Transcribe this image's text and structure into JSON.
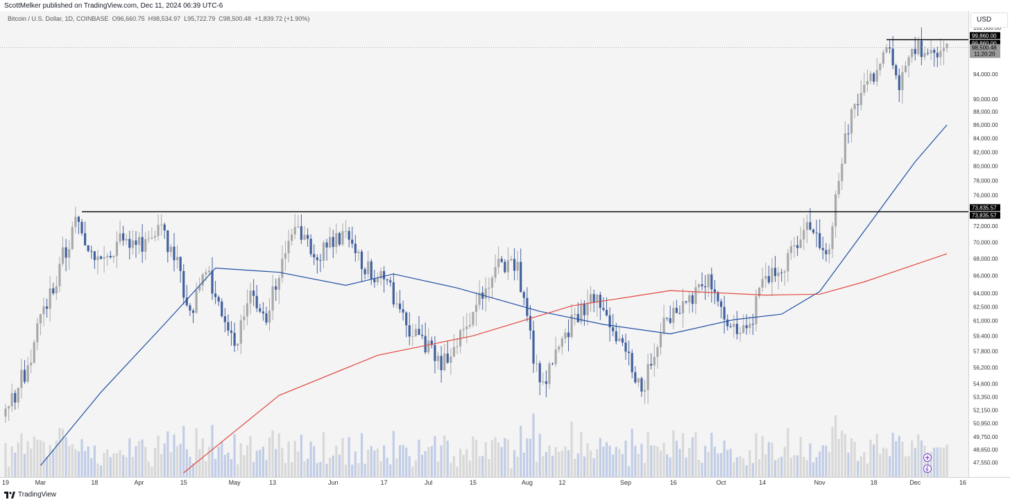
{
  "header": {
    "text": "ScottMelker published on TradingView.com, Dec 11, 2024 06:39 UTC-6"
  },
  "legend": {
    "symbol": "Bitcoin / U.S. Dollar, 1D, COINBASE",
    "open_label": "O",
    "open": "96,660.75",
    "high_label": "H",
    "high": "98,534.97",
    "low_label": "L",
    "low": "95,722.79",
    "close_label": "C",
    "close": "98,500.48",
    "change": "+1,839.72 (+1.90%)"
  },
  "currency": "USD",
  "footer": {
    "brand": "TradingView"
  },
  "colors": {
    "up": "#a8a8a8",
    "down": "#41609c",
    "ma_short": "#1f4ea3",
    "ma_long": "#e2453c",
    "background": "#f4f4f4"
  },
  "chart_data": {
    "type": "candlestick",
    "timeframe": "1D",
    "symbol": "BTCUSD",
    "exchange": "COINBASE",
    "price_axis": {
      "ticks": [
        "102,000.00",
        "94,000.00",
        "90,000.00",
        "88,000.00",
        "86,000.00",
        "84,000.00",
        "82,000.00",
        "80,000.00",
        "78,000.00",
        "76,000.00",
        "72,000.00",
        "70,000.00",
        "68,000.00",
        "66,000.00",
        "64,000.00",
        "62,500.00",
        "61,000.00",
        "59,400.00",
        "57,800.00",
        "56,200.00",
        "54,600.00",
        "53,350.00",
        "52,150.00",
        "50,950.00",
        "49,750.00",
        "48,650.00",
        "47,550.00"
      ],
      "scale": "log",
      "range": [
        46700,
        104500
      ]
    },
    "time_axis": {
      "ticks": [
        "19",
        "Mar",
        "18",
        "Apr",
        "15",
        "May",
        "13",
        "Jun",
        "17",
        "Jul",
        "15",
        "Aug",
        "12",
        "Sep",
        "16",
        "Oct",
        "14",
        "Nov",
        "18",
        "Dec",
        "16"
      ],
      "range": [
        "2024-02-19",
        "2024-12-16"
      ]
    },
    "horizontal_lines": [
      {
        "price": 99860.0,
        "label": "99,860.00",
        "label2": "99,860.00",
        "from": "2024-11-22"
      },
      {
        "price": 73835.57,
        "label": "73,835.57",
        "label2": "73,835.57",
        "from": "2024-03-14"
      }
    ],
    "last_price": {
      "price": 98500.48,
      "label": "98,500.48",
      "countdown": "11:20:20"
    },
    "ohlc_keypoints": [
      [
        "2024-02-19",
        51800
      ],
      [
        "2024-02-27",
        57000
      ],
      [
        "2024-03-01",
        62400
      ],
      [
        "2024-03-05",
        63800
      ],
      [
        "2024-03-08",
        68300
      ],
      [
        "2024-03-13",
        73000
      ],
      [
        "2024-03-16",
        69500
      ],
      [
        "2024-03-20",
        67800
      ],
      [
        "2024-03-25",
        70000
      ],
      [
        "2024-04-01",
        69700
      ],
      [
        "2024-04-08",
        71600
      ],
      [
        "2024-04-13",
        67200
      ],
      [
        "2024-04-17",
        61300
      ],
      [
        "2024-04-22",
        66800
      ],
      [
        "2024-05-01",
        58300
      ],
      [
        "2024-05-06",
        63400
      ],
      [
        "2024-05-10",
        60800
      ],
      [
        "2024-05-15",
        66200
      ],
      [
        "2024-05-20",
        71400
      ],
      [
        "2024-05-27",
        68500
      ],
      [
        "2024-06-05",
        71100
      ],
      [
        "2024-06-11",
        67300
      ],
      [
        "2024-06-18",
        65200
      ],
      [
        "2024-06-24",
        60300
      ],
      [
        "2024-07-05",
        56700
      ],
      [
        "2024-07-14",
        60800
      ],
      [
        "2024-07-22",
        67500
      ],
      [
        "2024-07-29",
        66800
      ],
      [
        "2024-08-05",
        54000
      ],
      [
        "2024-08-12",
        59300
      ],
      [
        "2024-08-23",
        64100
      ],
      [
        "2024-09-01",
        57400
      ],
      [
        "2024-09-06",
        53800
      ],
      [
        "2024-09-13",
        60500
      ],
      [
        "2024-09-20",
        63100
      ],
      [
        "2024-09-27",
        65800
      ],
      [
        "2024-10-02",
        60600
      ],
      [
        "2024-10-10",
        60300
      ],
      [
        "2024-10-14",
        65600
      ],
      [
        "2024-10-21",
        67400
      ],
      [
        "2024-10-29",
        72700
      ],
      [
        "2024-11-04",
        68300
      ],
      [
        "2024-11-06",
        76000
      ],
      [
        "2024-11-11",
        88700
      ],
      [
        "2024-11-15",
        91000
      ],
      [
        "2024-11-22",
        98900
      ],
      [
        "2024-11-26",
        91900
      ],
      [
        "2024-11-29",
        97400
      ],
      [
        "2024-12-04",
        98700
      ],
      [
        "2024-12-05",
        96900
      ],
      [
        "2024-12-09",
        97200
      ],
      [
        "2024-12-11",
        98500
      ]
    ],
    "series": [
      {
        "values_from": "ohlc_keypoints"
      },
      {
        "color": "#1f4ea3",
        "points": [
          [
            "2024-03-01",
            47300
          ],
          [
            "2024-03-20",
            53800
          ],
          [
            "2024-04-10",
            61000
          ],
          [
            "2024-04-25",
            66900
          ],
          [
            "2024-05-15",
            66400
          ],
          [
            "2024-06-05",
            64900
          ],
          [
            "2024-06-20",
            66200
          ],
          [
            "2024-07-10",
            64600
          ],
          [
            "2024-08-05",
            62000
          ],
          [
            "2024-08-25",
            60600
          ],
          [
            "2024-09-15",
            59600
          ],
          [
            "2024-10-05",
            61100
          ],
          [
            "2024-10-20",
            61700
          ],
          [
            "2024-11-01",
            64200
          ],
          [
            "2024-11-15",
            71400
          ],
          [
            "2024-12-01",
            80600
          ],
          [
            "2024-12-11",
            86000
          ]
        ]
      },
      {
        "color": "#e2453c",
        "points": [
          [
            "2024-04-15",
            46700
          ],
          [
            "2024-05-15",
            53500
          ],
          [
            "2024-06-15",
            57400
          ],
          [
            "2024-07-15",
            59400
          ],
          [
            "2024-08-15",
            62600
          ],
          [
            "2024-09-15",
            64300
          ],
          [
            "2024-10-15",
            63800
          ],
          [
            "2024-11-01",
            63900
          ],
          [
            "2024-11-15",
            65300
          ],
          [
            "2024-12-11",
            68600
          ]
        ]
      }
    ]
  }
}
